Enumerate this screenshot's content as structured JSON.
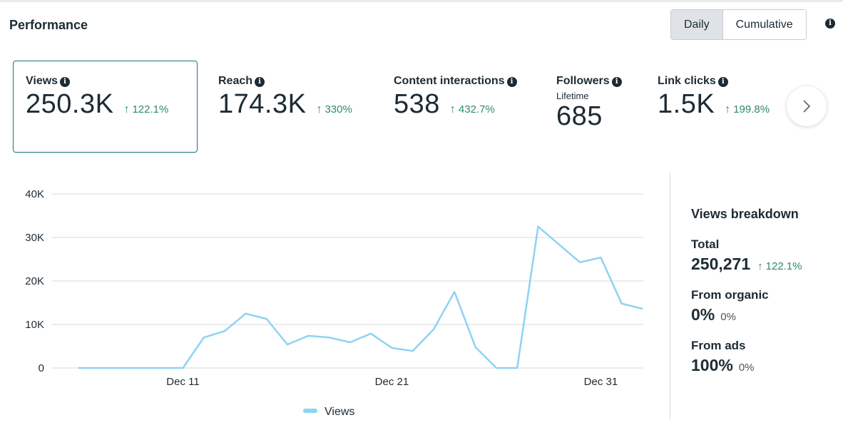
{
  "header": {
    "title": "Performance",
    "toggle": {
      "options": [
        "Daily",
        "Cumulative"
      ],
      "selected": "Daily"
    },
    "info_icon": "info-icon"
  },
  "metrics": [
    {
      "label": "Views",
      "value": "250.3K",
      "change": "122.1%",
      "direction": "up",
      "selected": true
    },
    {
      "label": "Reach",
      "value": "174.3K",
      "change": "330%",
      "direction": "up"
    },
    {
      "label": "Content interactions",
      "value": "538",
      "change": "432.7%",
      "direction": "up"
    },
    {
      "label": "Followers",
      "sublabel": "Lifetime",
      "value": "685"
    },
    {
      "label": "Link clicks",
      "value": "1.5K",
      "change": "199.8%",
      "direction": "up"
    }
  ],
  "next_button_icon": "chevron-right-icon",
  "colors": {
    "line": "#8dd3f3",
    "positive": "#2e8b67",
    "selected_border": "#1f6f8b",
    "grid": "#e4e6e8"
  },
  "breakdown": {
    "title": "Views breakdown",
    "items": [
      {
        "label": "Total",
        "value": "250,271",
        "change": "122.1%",
        "direction": "up"
      },
      {
        "label": "From organic",
        "value": "0%",
        "change": "0%"
      },
      {
        "label": "From ads",
        "value": "100%",
        "change": "0%"
      }
    ]
  },
  "chart_data": {
    "type": "line",
    "title": "",
    "xlabel": "",
    "ylabel": "",
    "ylim": [
      0,
      40000
    ],
    "yticks": [
      0,
      10000,
      20000,
      30000,
      40000
    ],
    "ytick_labels": [
      "0",
      "10K",
      "20K",
      "30K",
      "40K"
    ],
    "xtick_labels": [
      "Dec 11",
      "Dec 21",
      "Dec 31"
    ],
    "xtick_indices": [
      5,
      15,
      25
    ],
    "grid": true,
    "legend": {
      "position": "bottom-center",
      "entries": [
        "Views"
      ]
    },
    "x": [
      "Dec 6",
      "Dec 7",
      "Dec 8",
      "Dec 9",
      "Dec 10",
      "Dec 11",
      "Dec 12",
      "Dec 13",
      "Dec 14",
      "Dec 15",
      "Dec 16",
      "Dec 17",
      "Dec 18",
      "Dec 19",
      "Dec 20",
      "Dec 21",
      "Dec 22",
      "Dec 23",
      "Dec 24",
      "Dec 25",
      "Dec 26",
      "Dec 27",
      "Dec 28",
      "Dec 29",
      "Dec 30",
      "Dec 31",
      "Jan 1",
      "Jan 2"
    ],
    "series": [
      {
        "name": "Views",
        "values": [
          0,
          0,
          0,
          0,
          0,
          0,
          7000,
          8500,
          12500,
          11300,
          5400,
          7400,
          7000,
          5900,
          7900,
          4600,
          3900,
          8900,
          17500,
          4800,
          0,
          0,
          32500,
          28400,
          24300,
          25400,
          14800,
          13600
        ]
      }
    ]
  }
}
